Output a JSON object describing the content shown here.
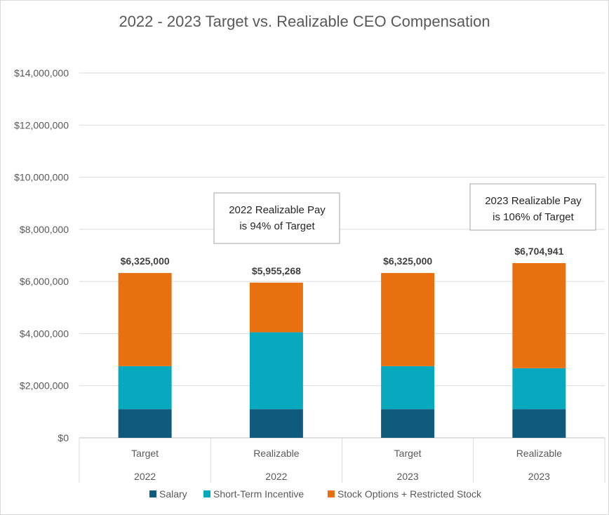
{
  "chart_data": {
    "type": "bar",
    "stacked": true,
    "title": "2022 - 2023 Target vs. Realizable CEO Compensation",
    "categories": [
      {
        "label": "Target",
        "group": "2022"
      },
      {
        "label": "Realizable",
        "group": "2022"
      },
      {
        "label": "Target",
        "group": "2023"
      },
      {
        "label": "Realizable",
        "group": "2023"
      }
    ],
    "series": [
      {
        "name": "Salary",
        "color": "#0f5a7d",
        "values": [
          1100000,
          1100000,
          1100000,
          1100000
        ]
      },
      {
        "name": "Short-Term Incentive",
        "color": "#06a9bd",
        "values": [
          1650000,
          2950000,
          1650000,
          1570000
        ]
      },
      {
        "name": "Stock Options + Restricted Stock",
        "color": "#e8700e",
        "values": [
          3575000,
          1905268,
          3575000,
          4034941
        ]
      }
    ],
    "totals": [
      "$6,325,000",
      "$5,955,268",
      "$6,325,000",
      "$6,704,941"
    ],
    "ylim": [
      0,
      14000000
    ],
    "yticks": [
      "$0",
      "$2,000,000",
      "$4,000,000",
      "$6,000,000",
      "$8,000,000",
      "$10,000,000",
      "$12,000,000",
      "$14,000,000"
    ],
    "ytick_values": [
      0,
      2000000,
      4000000,
      6000000,
      8000000,
      10000000,
      12000000,
      14000000
    ],
    "annotations": [
      {
        "line1": "2022 Realizable Pay",
        "line2": "is 94% of Target"
      },
      {
        "line1": "2023 Realizable Pay",
        "line2": "is 106% of Target"
      }
    ],
    "legend_position": "bottom",
    "grid": true
  }
}
